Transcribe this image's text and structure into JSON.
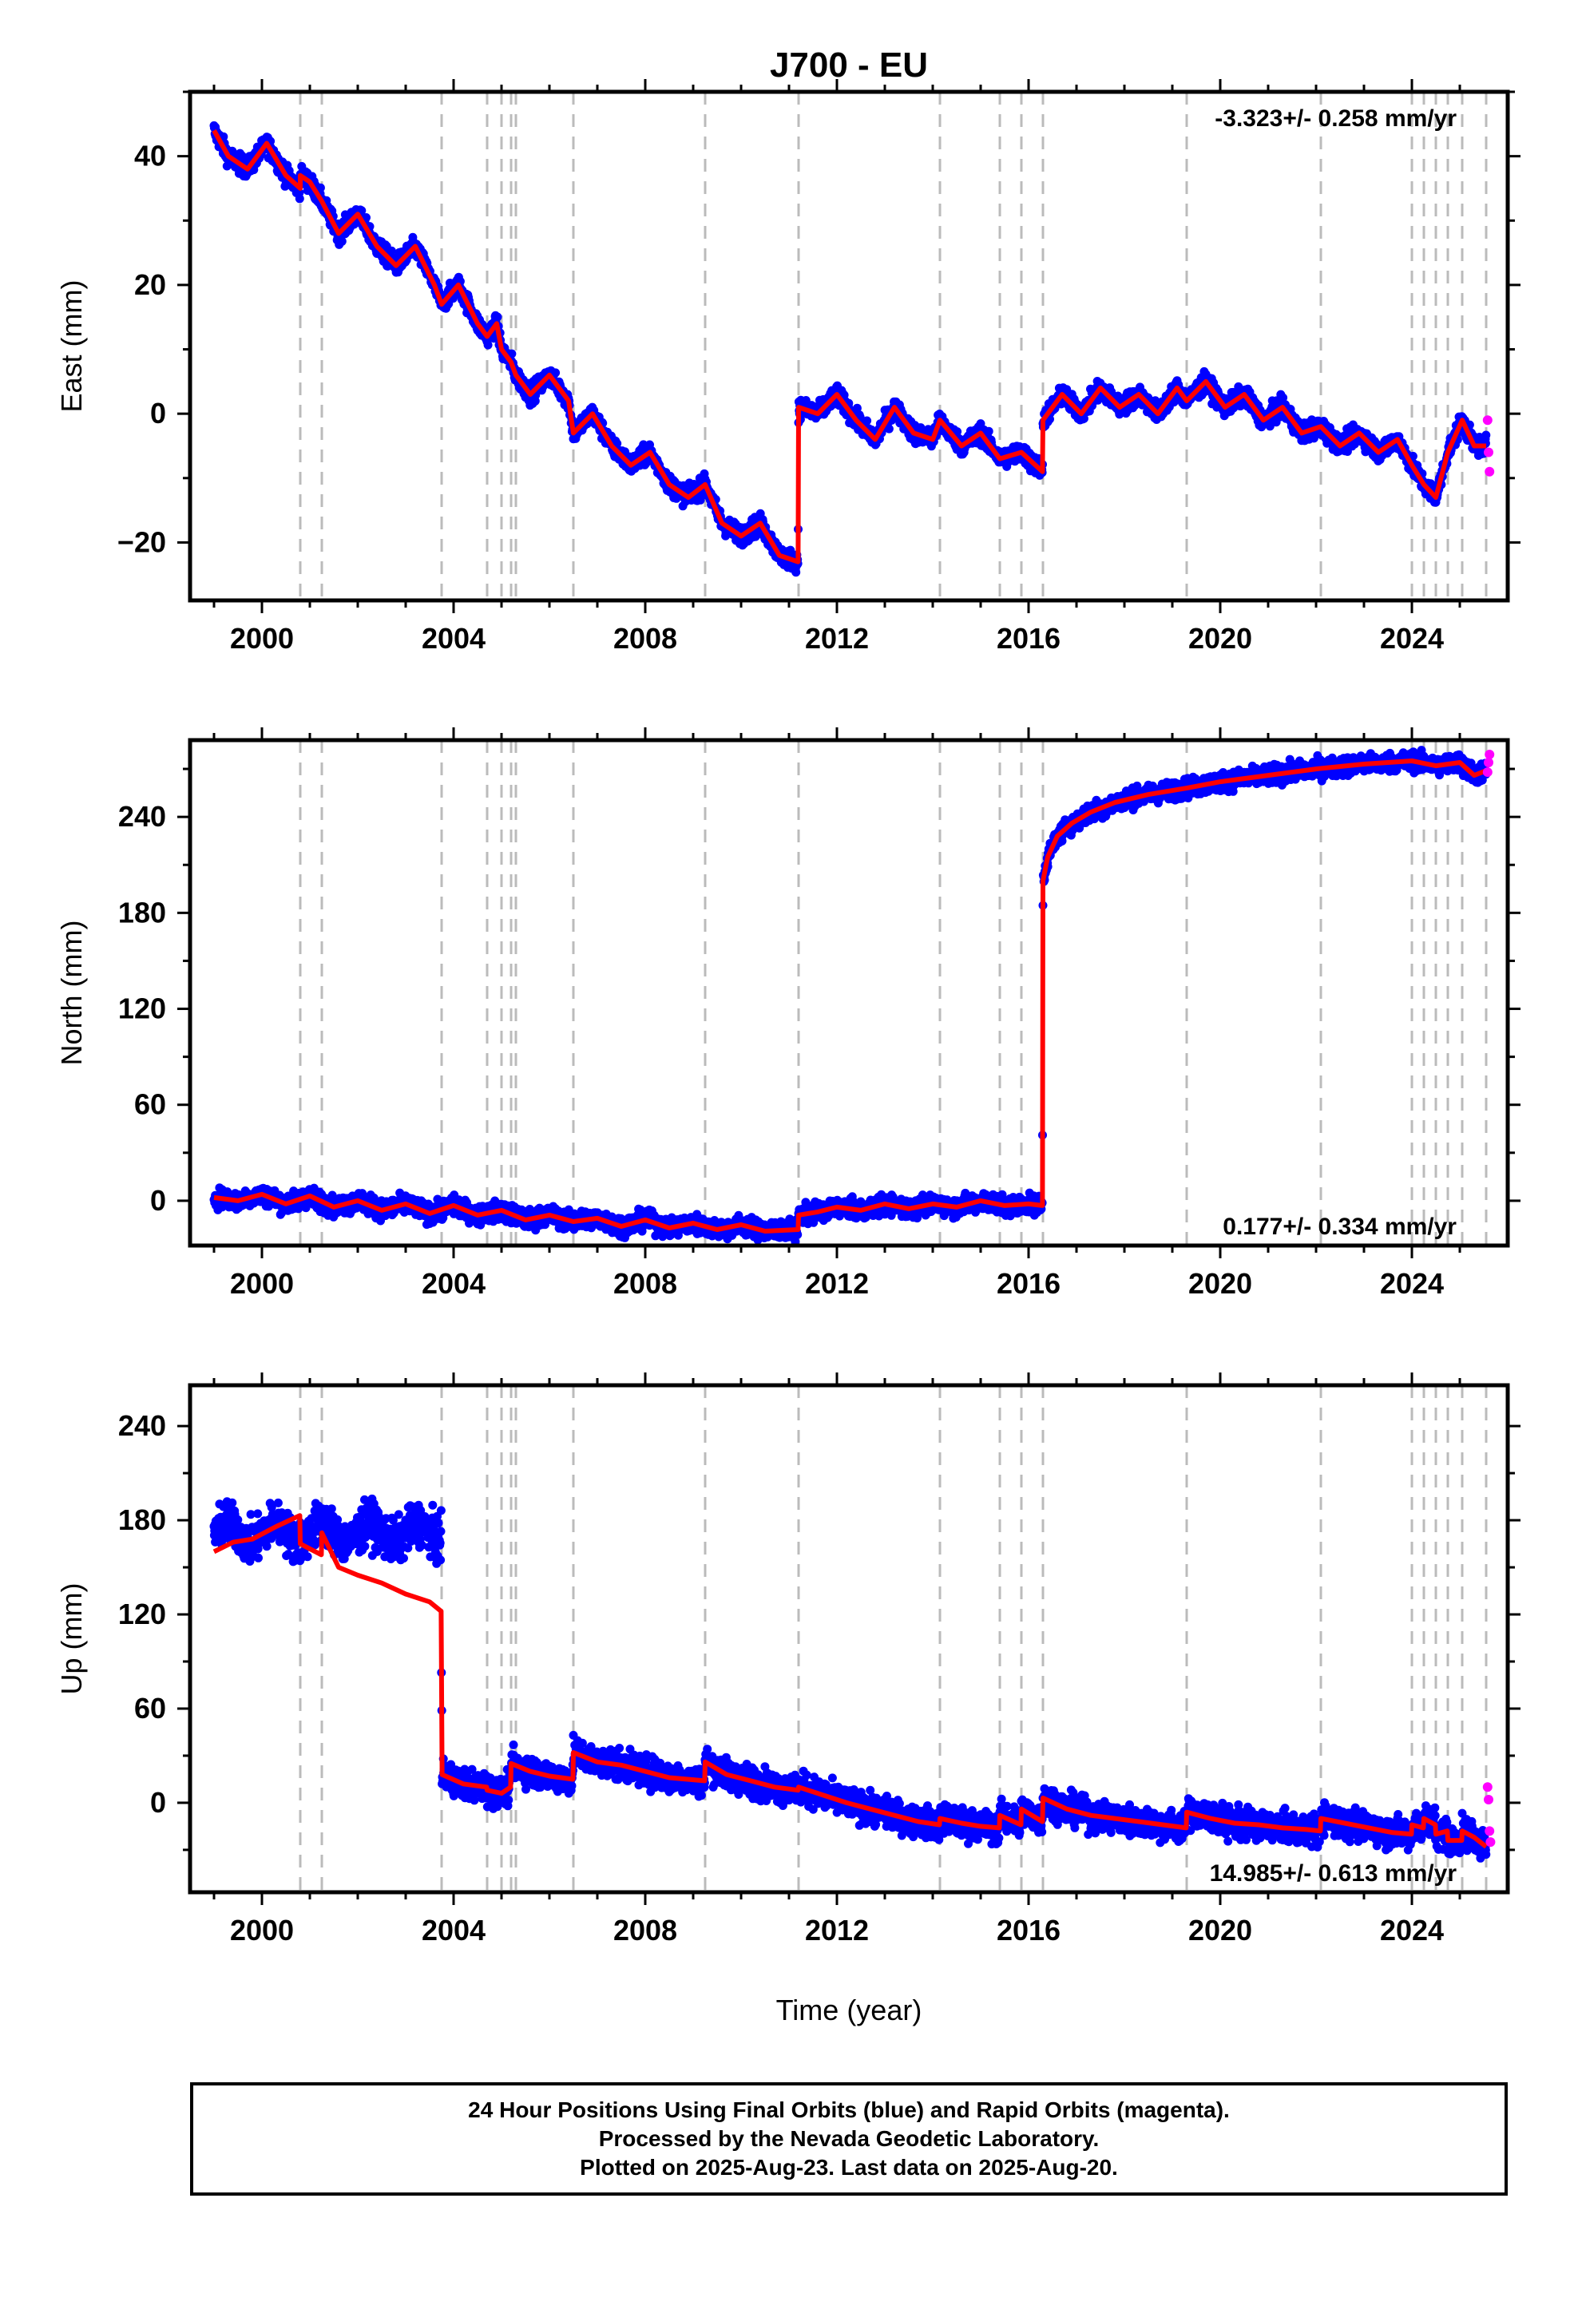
{
  "title": "J700 - EU",
  "xlabel": "Time (year)",
  "footer": {
    "line1": "24 Hour Positions Using Final Orbits (blue) and Rapid Orbits (magenta).",
    "line2": "Processed by the Nevada Geodetic Laboratory.",
    "line3": "Plotted on 2025-Aug-23. Last data on 2025-Aug-20."
  },
  "colors": {
    "final": "#0000ff",
    "rapid": "#ff00ff",
    "model": "#ff0000",
    "event": "#bbbbbb"
  },
  "chart_data": [
    {
      "type": "scatter",
      "ylabel": "East (mm)",
      "rate_label": "-3.323+/- 0.258 mm/yr",
      "xlim": [
        1998.5,
        2026.0
      ],
      "ylim": [
        -29,
        50
      ],
      "yticks": [
        -20,
        0,
        20,
        40
      ],
      "xticks": [
        2000,
        2004,
        2008,
        2012,
        2016,
        2020,
        2024
      ],
      "events": [
        2000.8,
        2001.25,
        2003.75,
        2004.7,
        2005.0,
        2005.2,
        2005.3,
        2006.5,
        2009.25,
        2011.2,
        2014.15,
        2015.4,
        2015.85,
        2016.3,
        2019.3,
        2022.1,
        2024.0,
        2024.25,
        2024.5,
        2024.75,
        2025.05,
        2025.55
      ],
      "model": {
        "x": [
          1999.0,
          1999.3,
          1999.7,
          2000.1,
          2000.5,
          2000.8,
          2000.8,
          2001.0,
          2001.25,
          2001.6,
          2002.0,
          2002.4,
          2002.8,
          2003.2,
          2003.6,
          2003.75,
          2004.1,
          2004.5,
          2004.7,
          2004.9,
          2005.0,
          2005.2,
          2005.3,
          2005.6,
          2006.0,
          2006.4,
          2006.5,
          2006.9,
          2007.3,
          2007.7,
          2008.1,
          2008.5,
          2008.9,
          2009.25,
          2009.6,
          2010.0,
          2010.4,
          2010.8,
          2011.19,
          2011.2,
          2011.6,
          2012.0,
          2012.4,
          2012.8,
          2013.2,
          2013.6,
          2014.0,
          2014.15,
          2014.6,
          2015.0,
          2015.4,
          2015.85,
          2016.29,
          2016.3,
          2016.7,
          2017.1,
          2017.5,
          2017.9,
          2018.3,
          2018.7,
          2019.1,
          2019.3,
          2019.7,
          2020.1,
          2020.5,
          2020.9,
          2021.3,
          2021.7,
          2022.1,
          2022.5,
          2022.9,
          2023.3,
          2023.7,
          2024.0,
          2024.25,
          2024.5,
          2024.75,
          2025.05,
          2025.3,
          2025.55
        ],
        "y": [
          44,
          40,
          38,
          42,
          37,
          35,
          37,
          36,
          33,
          28,
          31,
          26,
          23,
          26,
          20,
          17,
          20,
          14,
          12,
          14,
          10,
          8,
          6,
          3,
          6,
          2,
          -3,
          0,
          -5,
          -8,
          -6,
          -11,
          -13,
          -11,
          -17,
          -19,
          -17,
          -22,
          -23,
          1,
          0,
          3,
          -1,
          -4,
          1,
          -3,
          -4,
          -1,
          -5,
          -3,
          -7,
          -6,
          -9,
          -1,
          3,
          0,
          4,
          1,
          3,
          0,
          4,
          2,
          5,
          1,
          3,
          -1,
          1,
          -3,
          -2,
          -5,
          -3,
          -6,
          -4,
          -8,
          -11,
          -13,
          -6,
          -1,
          -5,
          -5
        ]
      },
      "rapid": {
        "x": [
          2025.58,
          2025.6,
          2025.62
        ],
        "y": [
          -1,
          -6,
          -9
        ]
      }
    },
    {
      "type": "scatter",
      "ylabel": "North (mm)",
      "rate_label": "0.177+/- 0.334 mm/yr",
      "xlim": [
        1998.5,
        2026.0
      ],
      "ylim": [
        -28,
        288
      ],
      "yticks": [
        0,
        60,
        120,
        180,
        240
      ],
      "xticks": [
        2000,
        2004,
        2008,
        2012,
        2016,
        2020,
        2024
      ],
      "events": [
        2000.8,
        2001.25,
        2003.75,
        2004.7,
        2005.0,
        2005.2,
        2005.3,
        2006.5,
        2009.25,
        2011.2,
        2014.15,
        2015.4,
        2015.85,
        2016.3,
        2019.3,
        2022.1,
        2024.0,
        2024.25,
        2024.5,
        2024.75,
        2025.05,
        2025.55
      ],
      "model": {
        "x": [
          1999.0,
          1999.5,
          2000.0,
          2000.5,
          2001.0,
          2001.5,
          2002.0,
          2002.5,
          2003.0,
          2003.5,
          2004.0,
          2004.5,
          2005.0,
          2005.5,
          2006.0,
          2006.5,
          2007.0,
          2007.5,
          2008.0,
          2008.5,
          2009.0,
          2009.5,
          2010.0,
          2010.5,
          2011.19,
          2011.2,
          2011.6,
          2012.0,
          2012.5,
          2013.0,
          2013.5,
          2014.0,
          2014.5,
          2015.0,
          2015.5,
          2016.0,
          2016.29,
          2016.3,
          2016.4,
          2016.6,
          2016.9,
          2017.3,
          2017.8,
          2018.5,
          2019.3,
          2020.0,
          2021.0,
          2022.0,
          2023.0,
          2024.0,
          2024.5,
          2025.0,
          2025.3,
          2025.55
        ],
        "y": [
          2,
          0,
          4,
          -2,
          3,
          -4,
          0,
          -6,
          -2,
          -8,
          -3,
          -9,
          -6,
          -12,
          -9,
          -13,
          -11,
          -16,
          -12,
          -17,
          -14,
          -18,
          -15,
          -19,
          -18,
          -9,
          -7,
          -4,
          -6,
          -2,
          -5,
          -2,
          -4,
          0,
          -3,
          -2,
          -3,
          200,
          215,
          228,
          236,
          243,
          249,
          254,
          258,
          262,
          266,
          270,
          273,
          275,
          272,
          274,
          266,
          269
        ]
      },
      "rapid": {
        "x": [
          2025.58,
          2025.6,
          2025.62
        ],
        "y": [
          268,
          274,
          279
        ]
      }
    },
    {
      "type": "scatter",
      "ylabel": "Up (mm)",
      "rate_label": "14.985+/- 0.613 mm/yr",
      "xlim": [
        1998.5,
        2026.0
      ],
      "ylim": [
        -57,
        266
      ],
      "yticks": [
        0,
        60,
        120,
        180,
        240
      ],
      "xticks": [
        2000,
        2004,
        2008,
        2012,
        2016,
        2020,
        2024
      ],
      "events": [
        2000.8,
        2001.25,
        2003.75,
        2004.7,
        2005.0,
        2005.2,
        2005.3,
        2006.5,
        2009.25,
        2011.2,
        2014.15,
        2015.4,
        2015.85,
        2016.3,
        2019.3,
        2022.1,
        2024.0,
        2024.25,
        2024.5,
        2024.75,
        2025.05,
        2025.55
      ],
      "model": {
        "x": [
          1999.0,
          1999.4,
          1999.8,
          2000.3,
          2000.79,
          2000.8,
          2001.24,
          2001.25,
          2001.6,
          2002.0,
          2002.5,
          2003.0,
          2003.5,
          2003.74,
          2003.76,
          2004.2,
          2004.69,
          2004.7,
          2005.0,
          2005.19,
          2005.2,
          2005.6,
          2006.0,
          2006.49,
          2006.5,
          2007.0,
          2007.5,
          2008.0,
          2008.5,
          2009.24,
          2009.25,
          2009.7,
          2010.2,
          2010.7,
          2011.19,
          2011.2,
          2011.7,
          2012.2,
          2012.7,
          2013.2,
          2013.7,
          2014.14,
          2014.15,
          2014.6,
          2015.0,
          2015.39,
          2015.4,
          2015.84,
          2015.85,
          2016.29,
          2016.3,
          2016.8,
          2017.3,
          2017.8,
          2018.3,
          2018.8,
          2019.29,
          2019.3,
          2019.8,
          2020.3,
          2020.8,
          2021.3,
          2021.8,
          2022.09,
          2022.1,
          2022.6,
          2023.1,
          2023.6,
          2023.99,
          2024.0,
          2024.24,
          2024.25,
          2024.49,
          2024.5,
          2024.74,
          2024.75,
          2025.04,
          2025.05,
          2025.3,
          2025.55
        ],
        "y": [
          160,
          166,
          168,
          176,
          183,
          165,
          158,
          172,
          150,
          145,
          140,
          133,
          128,
          122,
          18,
          12,
          10,
          8,
          6,
          10,
          25,
          20,
          17,
          15,
          32,
          26,
          24,
          20,
          16,
          14,
          26,
          18,
          14,
          10,
          8,
          10,
          5,
          0,
          -4,
          -8,
          -12,
          -14,
          -10,
          -13,
          -15,
          -16,
          -8,
          -14,
          -4,
          -12,
          3,
          -4,
          -8,
          -10,
          -12,
          -14,
          -16,
          -6,
          -10,
          -13,
          -14,
          -16,
          -17,
          -18,
          -10,
          -13,
          -16,
          -19,
          -20,
          -14,
          -16,
          -10,
          -14,
          -20,
          -18,
          -24,
          -24,
          -18,
          -22,
          -28
        ]
      },
      "rapid": {
        "x": [
          2025.58,
          2025.6,
          2025.62,
          2025.64
        ],
        "y": [
          10,
          2,
          -18,
          -25
        ]
      }
    }
  ]
}
